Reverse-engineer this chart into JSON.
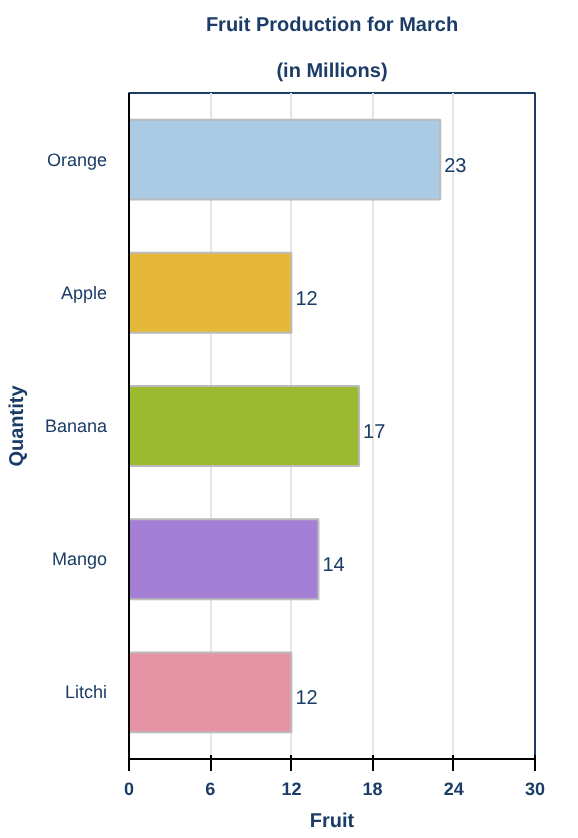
{
  "chart_data": {
    "type": "bar",
    "orientation": "horizontal",
    "title": "Fruit Production for March",
    "subtitle": "(in Millions)",
    "xlabel": "Fruit",
    "ylabel": "Quantity",
    "categories": [
      "Orange",
      "Apple",
      "Banana",
      "Mango",
      "Litchi"
    ],
    "values": [
      23,
      12,
      17,
      14,
      12
    ],
    "colors": [
      "#abcbe4",
      "#e5b83a",
      "#9cba2f",
      "#a57fd6",
      "#e593a5"
    ],
    "xlim": [
      0,
      30
    ],
    "xticks": [
      0,
      6,
      12,
      18,
      24,
      30
    ],
    "grid": "x",
    "data_labels": true
  }
}
